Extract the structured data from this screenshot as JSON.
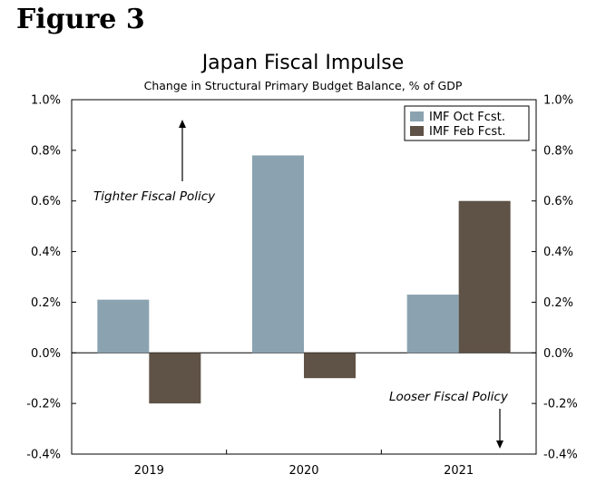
{
  "figure_label": "Figure 3",
  "chart_data": {
    "type": "bar",
    "title": "Japan Fiscal Impulse",
    "subtitle": "Change in Structural Primary Budget Balance, % of GDP",
    "categories": [
      "2019",
      "2020",
      "2021"
    ],
    "series": [
      {
        "name": "IMF Oct Fcst.",
        "color": "#8ba3b1",
        "values": [
          0.21,
          0.78,
          0.23
        ]
      },
      {
        "name": "IMF Feb Fcst.",
        "color": "#5f5246",
        "values": [
          -0.2,
          -0.1,
          0.6
        ]
      }
    ],
    "ylim": [
      -0.4,
      1.0
    ],
    "yticks": [
      -0.4,
      -0.2,
      0.0,
      0.2,
      0.4,
      0.6,
      0.8,
      1.0
    ],
    "ytick_labels": [
      "-0.4%",
      "-0.2%",
      "0.0%",
      "0.2%",
      "0.4%",
      "0.6%",
      "0.8%",
      "1.0%"
    ],
    "legend_position": "top-right",
    "grid": false,
    "annotations": [
      {
        "text": "Tighter Fiscal Policy",
        "arrow": "up"
      },
      {
        "text": "Looser Fiscal Policy",
        "arrow": "down"
      }
    ]
  }
}
